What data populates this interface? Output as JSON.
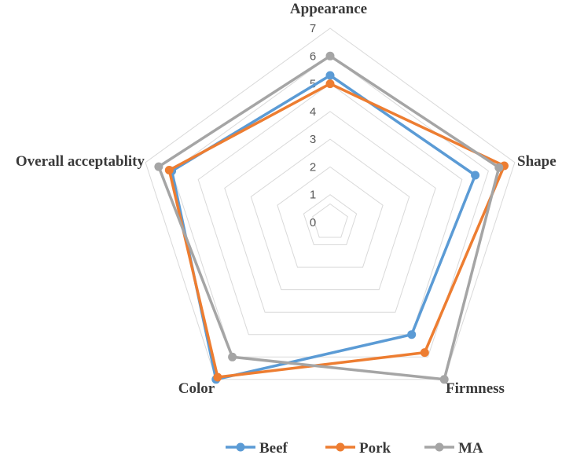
{
  "chart_data": {
    "type": "radar",
    "categories": [
      "Appearance",
      "Shape",
      "Firmness",
      "Color",
      "Overall acceptablity"
    ],
    "rlim": [
      0,
      7
    ],
    "ticks": [
      0,
      1,
      2,
      3,
      4,
      5,
      6,
      7
    ],
    "grid": true,
    "legend": "bottom",
    "series": [
      {
        "name": "Beef",
        "color": "#5b9bd5",
        "values": [
          5.3,
          5.5,
          5.0,
          7.0,
          6.0
        ]
      },
      {
        "name": "Pork",
        "color": "#ed7d31",
        "values": [
          5.0,
          6.6,
          5.8,
          6.9,
          6.1
        ]
      },
      {
        "name": "MA",
        "color": "#a5a5a5",
        "values": [
          6.0,
          6.4,
          7.0,
          6.0,
          6.5
        ]
      }
    ]
  }
}
